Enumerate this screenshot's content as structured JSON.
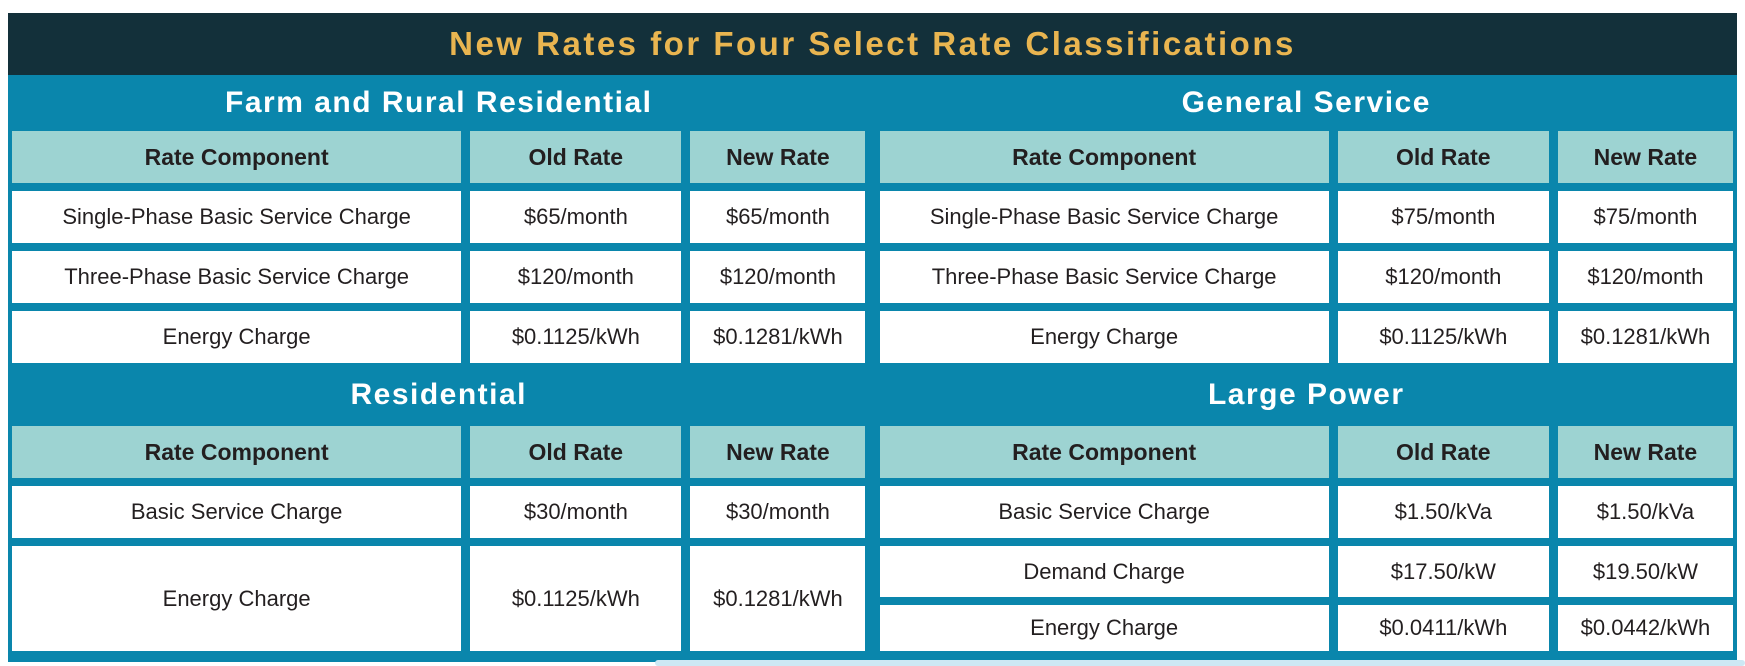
{
  "title": "New Rates for Four Select Rate Classifications",
  "columns": [
    "Rate Component",
    "Old Rate",
    "New Rate"
  ],
  "sections": {
    "farm": {
      "name": "Farm and Rural Residential",
      "rows": [
        [
          "Single-Phase Basic Service Charge",
          "$65/month",
          "$65/month"
        ],
        [
          "Three-Phase Basic Service Charge",
          "$120/month",
          "$120/month"
        ],
        [
          "Energy Charge",
          "$0.1125/kWh",
          "$0.1281/kWh"
        ]
      ]
    },
    "general": {
      "name": "General Service",
      "rows": [
        [
          "Single-Phase Basic Service Charge",
          "$75/month",
          "$75/month"
        ],
        [
          "Three-Phase Basic Service Charge",
          "$120/month",
          "$120/month"
        ],
        [
          "Energy Charge",
          "$0.1125/kWh",
          "$0.1281/kWh"
        ]
      ]
    },
    "residential": {
      "name": "Residential",
      "rows": [
        [
          "Basic Service Charge",
          "$30/month",
          "$30/month"
        ],
        [
          "Energy Charge",
          "$0.1125/kWh",
          "$0.1281/kWh"
        ]
      ]
    },
    "large_power": {
      "name": "Large Power",
      "rows": [
        [
          "Basic Service Charge",
          "$1.50/kVa",
          "$1.50/kVa"
        ],
        [
          "Demand Charge",
          "$17.50/kW",
          "$19.50/kW"
        ],
        [
          "Energy Charge",
          "$0.0411/kWh",
          "$0.0442/kWh"
        ]
      ]
    }
  },
  "colors": {
    "teal": "#0a86ac",
    "navy": "#13303a",
    "light_teal": "#9dd3d2",
    "gold": "#e9b550",
    "text_dark": "#231f20",
    "glow": "#cde8f4"
  }
}
